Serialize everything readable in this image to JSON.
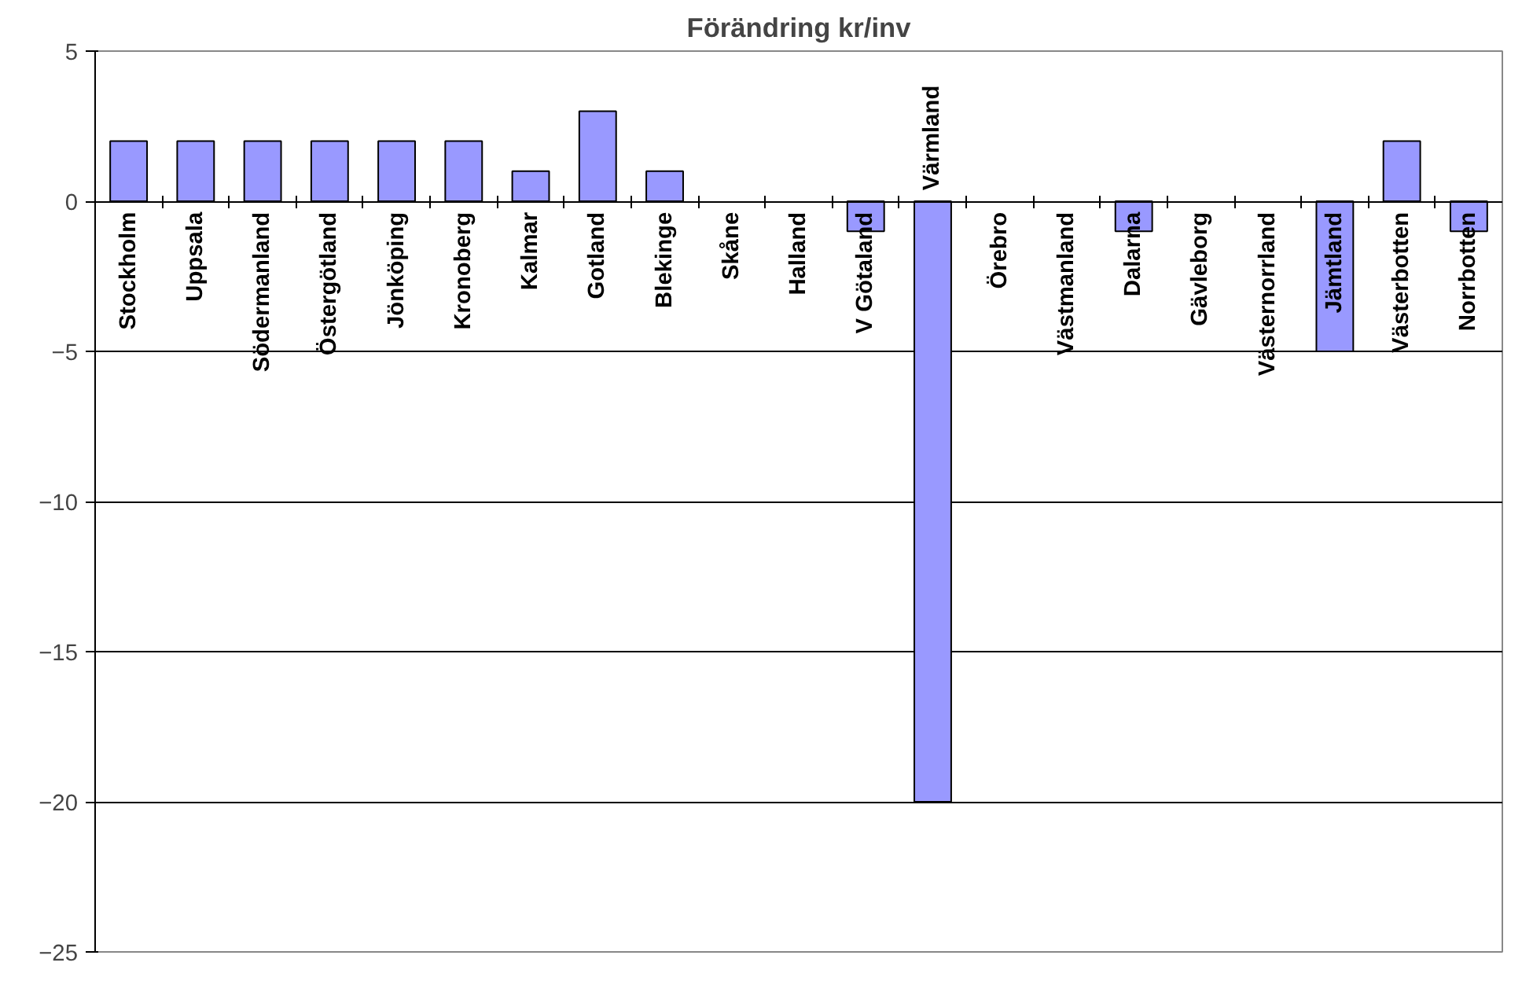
{
  "chart_data": {
    "type": "bar",
    "title": "Förändring kr/inv",
    "categories": [
      "Stockholm",
      "Uppsala",
      "Södermanland",
      "Östergötland",
      "Jönköping",
      "Kronoberg",
      "Kalmar",
      "Gotland",
      "Blekinge",
      "Skåne",
      "Halland",
      "V Götaland",
      "Värmland",
      "Örebro",
      "Västmanland",
      "Dalarna",
      "Gävleborg",
      "Västernorrland",
      "Jämtland",
      "Västerbotten",
      "Norrbotten"
    ],
    "values": [
      2,
      2,
      2,
      2,
      2,
      2,
      1,
      3,
      1,
      0,
      0,
      -1,
      -20,
      0,
      0,
      -1,
      0,
      0,
      -5,
      2,
      -1
    ],
    "color": "#9999ff",
    "ylim": [
      -25,
      5
    ],
    "yticks": [
      -25,
      -20,
      -15,
      -10,
      -5,
      0,
      5
    ],
    "grid": "y"
  }
}
